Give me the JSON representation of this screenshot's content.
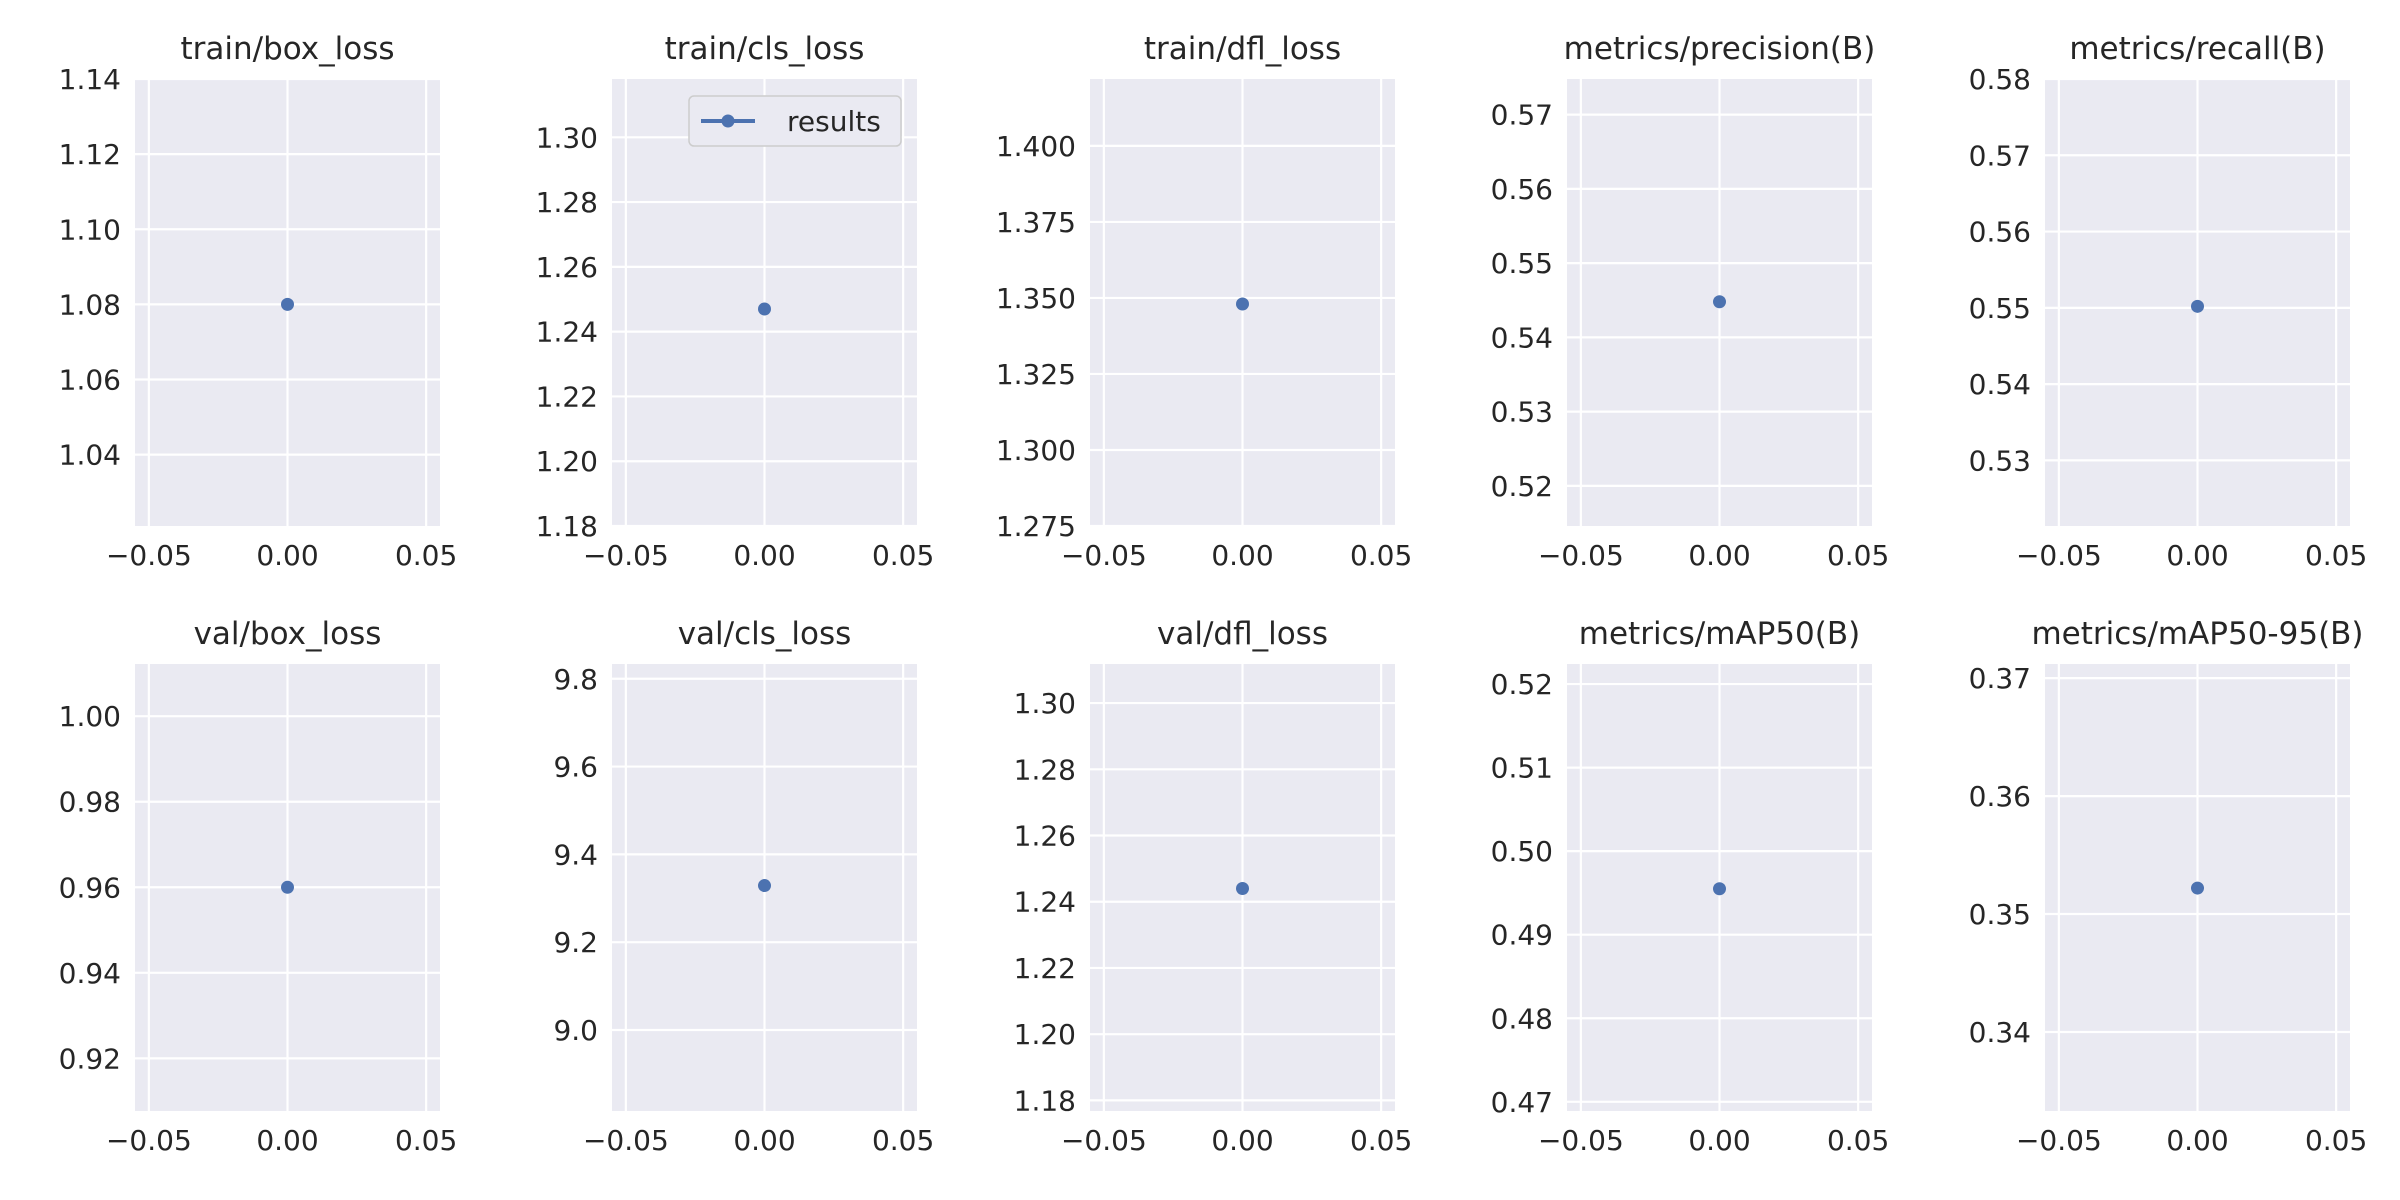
{
  "figure": {
    "background": "#ffffff",
    "axes_face": "#eaeaf2",
    "grid_color": "#ffffff",
    "series_color": "#4c72b0",
    "text_color": "#262626"
  },
  "legend": {
    "label": "results",
    "placement": "top-right of train/cls_loss panel"
  },
  "chart_data": [
    {
      "type": "line",
      "title": "train/box_loss",
      "series": [
        {
          "name": "results",
          "x": [
            0.0
          ],
          "y": [
            1.08
          ]
        }
      ],
      "xlim": [
        -0.055,
        0.055
      ],
      "ylim": [
        1.021,
        1.14
      ],
      "xticks": [
        "−0.05",
        "0.00",
        "0.05"
      ],
      "yticks": [
        "1.04",
        "1.06",
        "1.08",
        "1.10",
        "1.12",
        "1.14"
      ],
      "grid": true
    },
    {
      "type": "line",
      "title": "train/cls_loss",
      "series": [
        {
          "name": "results",
          "x": [
            0.0
          ],
          "y": [
            1.247
          ]
        }
      ],
      "xlim": [
        -0.055,
        0.055
      ],
      "ylim": [
        1.18,
        1.318
      ],
      "xticks": [
        "−0.05",
        "0.00",
        "0.05"
      ],
      "yticks": [
        "1.18",
        "1.20",
        "1.22",
        "1.24",
        "1.26",
        "1.28",
        "1.30"
      ],
      "grid": true,
      "legend": true
    },
    {
      "type": "line",
      "title": "train/dfl_loss",
      "series": [
        {
          "name": "results",
          "x": [
            0.0
          ],
          "y": [
            1.348
          ]
        }
      ],
      "xlim": [
        -0.055,
        0.055
      ],
      "ylim": [
        1.275,
        1.422
      ],
      "xticks": [
        "−0.05",
        "0.00",
        "0.05"
      ],
      "yticks": [
        "1.275",
        "1.300",
        "1.325",
        "1.350",
        "1.375",
        "1.400"
      ],
      "grid": true
    },
    {
      "type": "line",
      "title": "metrics/precision(B)",
      "series": [
        {
          "name": "results",
          "x": [
            0.0
          ],
          "y": [
            0.5448
          ]
        }
      ],
      "xlim": [
        -0.055,
        0.055
      ],
      "ylim": [
        0.5146,
        0.5748
      ],
      "xticks": [
        "−0.05",
        "0.00",
        "0.05"
      ],
      "yticks": [
        "0.52",
        "0.53",
        "0.54",
        "0.55",
        "0.56",
        "0.57"
      ],
      "grid": true
    },
    {
      "type": "line",
      "title": "metrics/recall(B)",
      "series": [
        {
          "name": "results",
          "x": [
            0.0
          ],
          "y": [
            0.5502
          ]
        }
      ],
      "xlim": [
        -0.055,
        0.055
      ],
      "ylim": [
        0.5214,
        0.58
      ],
      "xticks": [
        "−0.05",
        "0.00",
        "0.05"
      ],
      "yticks": [
        "0.53",
        "0.54",
        "0.55",
        "0.56",
        "0.57",
        "0.58"
      ],
      "grid": true
    },
    {
      "type": "line",
      "title": "val/box_loss",
      "series": [
        {
          "name": "results",
          "x": [
            0.0
          ],
          "y": [
            0.96
          ]
        }
      ],
      "xlim": [
        -0.055,
        0.055
      ],
      "ylim": [
        0.9077,
        1.0122
      ],
      "xticks": [
        "−0.05",
        "0.00",
        "0.05"
      ],
      "yticks": [
        "0.92",
        "0.94",
        "0.96",
        "0.98",
        "1.00"
      ],
      "grid": true
    },
    {
      "type": "line",
      "title": "val/cls_loss",
      "series": [
        {
          "name": "results",
          "x": [
            0.0
          ],
          "y": [
            9.329
          ]
        }
      ],
      "xlim": [
        -0.055,
        0.055
      ],
      "ylim": [
        8.8155,
        9.8336
      ],
      "xticks": [
        "−0.05",
        "0.00",
        "0.05"
      ],
      "yticks": [
        "9.0",
        "9.2",
        "9.4",
        "9.6",
        "9.8"
      ],
      "grid": true
    },
    {
      "type": "line",
      "title": "val/dfl_loss",
      "series": [
        {
          "name": "results",
          "x": [
            0.0
          ],
          "y": [
            1.244
          ]
        }
      ],
      "xlim": [
        -0.055,
        0.055
      ],
      "ylim": [
        1.1768,
        1.3118
      ],
      "xticks": [
        "−0.05",
        "0.00",
        "0.05"
      ],
      "yticks": [
        "1.18",
        "1.20",
        "1.22",
        "1.24",
        "1.26",
        "1.28",
        "1.30"
      ],
      "grid": true
    },
    {
      "type": "line",
      "title": "metrics/mAP50(B)",
      "series": [
        {
          "name": "results",
          "x": [
            0.0
          ],
          "y": [
            0.4955
          ]
        }
      ],
      "xlim": [
        -0.055,
        0.055
      ],
      "ylim": [
        0.4689,
        0.5224
      ],
      "xticks": [
        "−0.05",
        "0.00",
        "0.05"
      ],
      "yticks": [
        "0.47",
        "0.48",
        "0.49",
        "0.50",
        "0.51",
        "0.52"
      ],
      "grid": true
    },
    {
      "type": "line",
      "title": "metrics/mAP50-95(B)",
      "series": [
        {
          "name": "results",
          "x": [
            0.0
          ],
          "y": [
            0.3522
          ]
        }
      ],
      "xlim": [
        -0.055,
        0.055
      ],
      "ylim": [
        0.3333,
        0.3712
      ],
      "xticks": [
        "−0.05",
        "0.00",
        "0.05"
      ],
      "yticks": [
        "0.34",
        "0.35",
        "0.36",
        "0.37"
      ],
      "grid": true
    }
  ]
}
